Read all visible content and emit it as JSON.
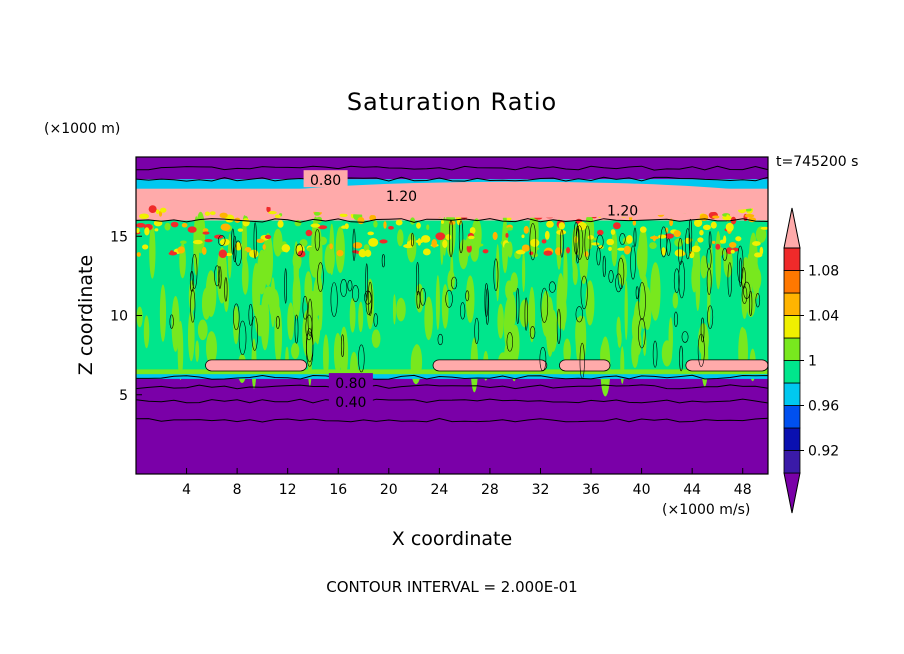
{
  "chart_data": {
    "type": "heatmap",
    "title": "Saturation Ratio",
    "xlabel": "X coordinate",
    "ylabel": "Z coordinate",
    "x_unit": "(×1000 m/s)",
    "y_unit": "(×1000 m)",
    "time_label": "t=745200 s",
    "contour_interval_label": "CONTOUR INTERVAL = 2.000E-01",
    "xlim": [
      0,
      50
    ],
    "ylim": [
      0,
      20
    ],
    "xticks": [
      "4",
      "8",
      "12",
      "16",
      "20",
      "24",
      "28",
      "32",
      "36",
      "40",
      "44",
      "48"
    ],
    "yticks": [
      "5",
      "10",
      "15"
    ],
    "colorbar": {
      "labels": [
        "0.92",
        "0.96",
        "1",
        "1.04",
        "1.08"
      ],
      "bins": [
        {
          "color": "#7a00a8"
        },
        {
          "color": "#3a1aa8"
        },
        {
          "color": "#0a10b0"
        },
        {
          "color": "#0050f0"
        },
        {
          "color": "#00c8f0"
        },
        {
          "color": "#00e68c"
        },
        {
          "color": "#78e81e"
        },
        {
          "color": "#f0f000"
        },
        {
          "color": "#ffb400"
        },
        {
          "color": "#ff7800"
        },
        {
          "color": "#f02a2a"
        },
        {
          "color": "#ffaaaa"
        }
      ]
    },
    "contour_labels": [
      {
        "text": "0.80",
        "x": 15.0,
        "y": 18.6
      },
      {
        "text": "1.20",
        "x": 21.0,
        "y": 17.6
      },
      {
        "text": "1.20",
        "x": 38.5,
        "y": 16.7
      },
      {
        "text": "0.80",
        "x": 17.0,
        "y": 5.8
      },
      {
        "text": "0.40",
        "x": 17.0,
        "y": 4.6
      }
    ],
    "colors": {
      "purple": "#7a00a8",
      "cyan": "#00c8f0",
      "green": "#00e68c",
      "lime": "#78e81e",
      "yellow": "#f0f000",
      "orange": "#ffb400",
      "red": "#f02a2a",
      "pink": "#ffaaaa"
    }
  }
}
